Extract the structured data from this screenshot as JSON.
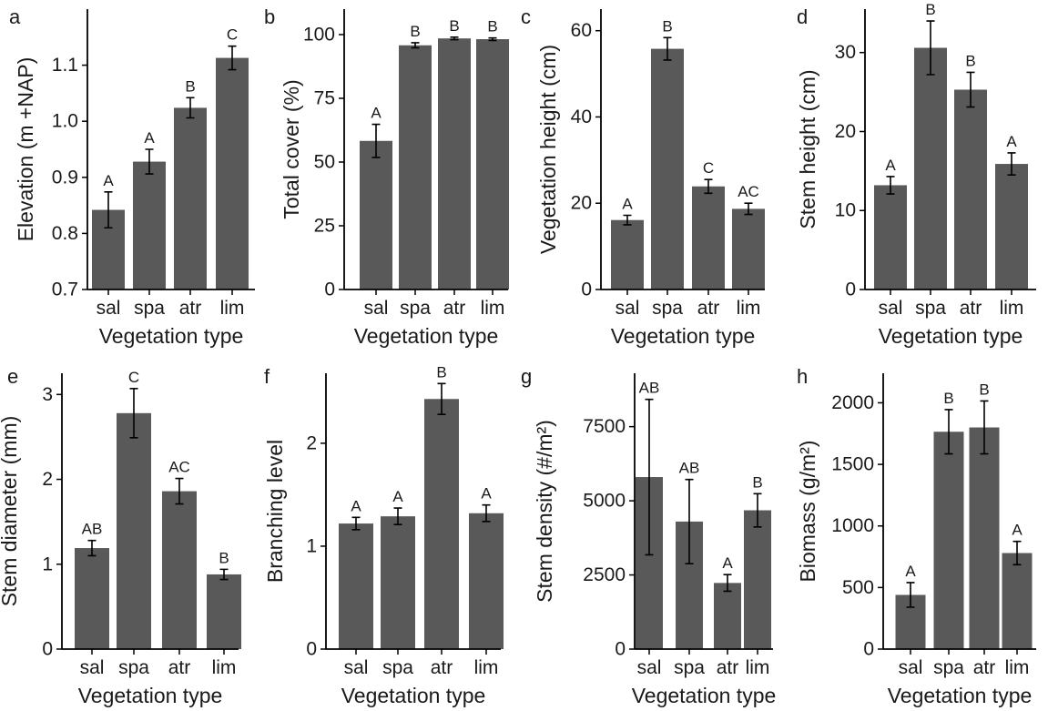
{
  "chart_data": [
    {
      "type": "bar",
      "panel": "a",
      "categories": [
        "sal",
        "spa",
        "atr",
        "lim"
      ],
      "values": [
        0.842,
        0.928,
        1.024,
        1.113
      ],
      "errors": [
        0.032,
        0.022,
        0.018,
        0.021
      ],
      "significance": [
        "A",
        "A",
        "B",
        "C"
      ],
      "xlabel": "Vegetation type",
      "ylabel": "Elevation (m +NAP)",
      "ylim": [
        0.7,
        1.2
      ],
      "yticks": [
        0.7,
        0.8,
        0.9,
        1.0,
        1.1
      ],
      "ytick_labels": [
        "0.7",
        "0.8",
        "0.9",
        "1.0",
        "1.1"
      ]
    },
    {
      "type": "bar",
      "panel": "b",
      "categories": [
        "sal",
        "spa",
        "atr",
        "lim"
      ],
      "values": [
        58.3,
        95.8,
        98.5,
        98.2
      ],
      "errors": [
        6.5,
        1.0,
        0.5,
        0.5
      ],
      "significance": [
        "A",
        "B",
        "B",
        "B"
      ],
      "xlabel": "Vegetation type",
      "ylabel": "Total cover (%)",
      "ylim": [
        0,
        110
      ],
      "yticks": [
        0,
        25,
        50,
        75,
        100
      ],
      "ytick_labels": [
        "0",
        "25",
        "50",
        "75",
        "100"
      ]
    },
    {
      "type": "bar",
      "panel": "c",
      "categories": [
        "sal",
        "spa",
        "atr",
        "lim"
      ],
      "values": [
        16.1,
        55.8,
        23.9,
        18.7
      ],
      "errors": [
        1.1,
        2.6,
        1.6,
        1.3
      ],
      "significance": [
        "A",
        "B",
        "C",
        "AC"
      ],
      "xlabel": "Vegetation type",
      "ylabel": "Vegetation height (cm)",
      "ylim": [
        0,
        65
      ],
      "yticks": [
        0,
        20,
        40,
        60
      ],
      "ytick_labels": [
        "0",
        "20",
        "40",
        "60"
      ]
    },
    {
      "type": "bar",
      "panel": "d",
      "categories": [
        "sal",
        "spa",
        "atr",
        "lim"
      ],
      "values": [
        13.2,
        30.6,
        25.3,
        15.9
      ],
      "errors": [
        1.1,
        3.4,
        2.2,
        1.4
      ],
      "significance": [
        "A",
        "B",
        "B",
        "A"
      ],
      "xlabel": "Vegetation type",
      "ylabel": "Stem height (cm)",
      "ylim": [
        0,
        35.5
      ],
      "yticks": [
        0,
        10,
        20,
        30
      ],
      "ytick_labels": [
        "0",
        "10",
        "20",
        "30"
      ]
    },
    {
      "type": "bar",
      "panel": "e",
      "categories": [
        "sal",
        "spa",
        "atr",
        "lim"
      ],
      "values": [
        1.19,
        2.78,
        1.86,
        0.88
      ],
      "errors": [
        0.09,
        0.29,
        0.15,
        0.06
      ],
      "significance": [
        "AB",
        "C",
        "AC",
        "B"
      ],
      "xlabel": "Vegetation type",
      "ylabel": "Stem diameter (mm)",
      "ylim": [
        0,
        3.25
      ],
      "yticks": [
        0,
        1,
        2,
        3
      ],
      "ytick_labels": [
        "0",
        "1",
        "2",
        "3"
      ]
    },
    {
      "type": "bar",
      "panel": "f",
      "categories": [
        "sal",
        "spa",
        "atr",
        "lim"
      ],
      "values": [
        1.22,
        1.29,
        2.43,
        1.32
      ],
      "errors": [
        0.06,
        0.08,
        0.15,
        0.08
      ],
      "significance": [
        "A",
        "A",
        "B",
        "A"
      ],
      "xlabel": "Vegetation type",
      "ylabel": "Branching level",
      "ylim": [
        0,
        2.68
      ],
      "yticks": [
        0,
        1,
        2
      ],
      "ytick_labels": [
        "0",
        "1",
        "2"
      ]
    },
    {
      "type": "bar",
      "panel": "g",
      "categories": [
        "sal",
        "spa",
        "atr",
        "lim"
      ],
      "values": [
        5800,
        4300,
        2230,
        4680
      ],
      "errors": [
        2620,
        1420,
        280,
        560
      ],
      "significance": [
        "AB",
        "AB",
        "A",
        "B"
      ],
      "xlabel": "Vegetation type",
      "ylabel": "Stem density (#/m²)",
      "ylim": [
        0,
        9300
      ],
      "yticks": [
        0,
        2500,
        5000,
        7500
      ],
      "ytick_labels": [
        "0",
        "2500",
        "5000",
        "7500"
      ]
    },
    {
      "type": "bar",
      "panel": "h",
      "categories": [
        "sal",
        "spa",
        "atr",
        "lim"
      ],
      "values": [
        440,
        1765,
        1800,
        780
      ],
      "errors": [
        100,
        180,
        215,
        95
      ],
      "significance": [
        "A",
        "B",
        "B",
        "A"
      ],
      "xlabel": "Vegetation type",
      "ylabel": "Biomass (g/m²)",
      "ylim": [
        0,
        2240
      ],
      "yticks": [
        0,
        500,
        1000,
        1500,
        2000
      ],
      "ytick_labels": [
        "0",
        "500",
        "1000",
        "1500",
        "2000"
      ]
    }
  ]
}
